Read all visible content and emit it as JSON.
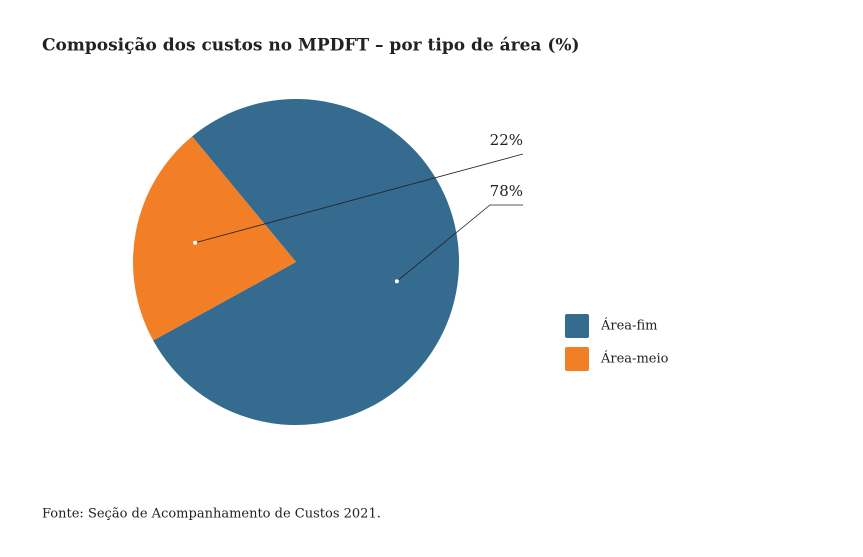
{
  "chart_data": {
    "type": "pie",
    "title": "Composição dos custos no MPDFT – por tipo de área (%)",
    "categories": [
      "Área-fim",
      "Área-meio"
    ],
    "values": [
      78,
      22
    ],
    "value_labels": [
      "78%",
      "22%"
    ],
    "colors": [
      "#356b8f",
      "#f27f26"
    ],
    "legend": "right",
    "source": "Fonte: Seção de Acompanhamento de Custos 2021."
  }
}
